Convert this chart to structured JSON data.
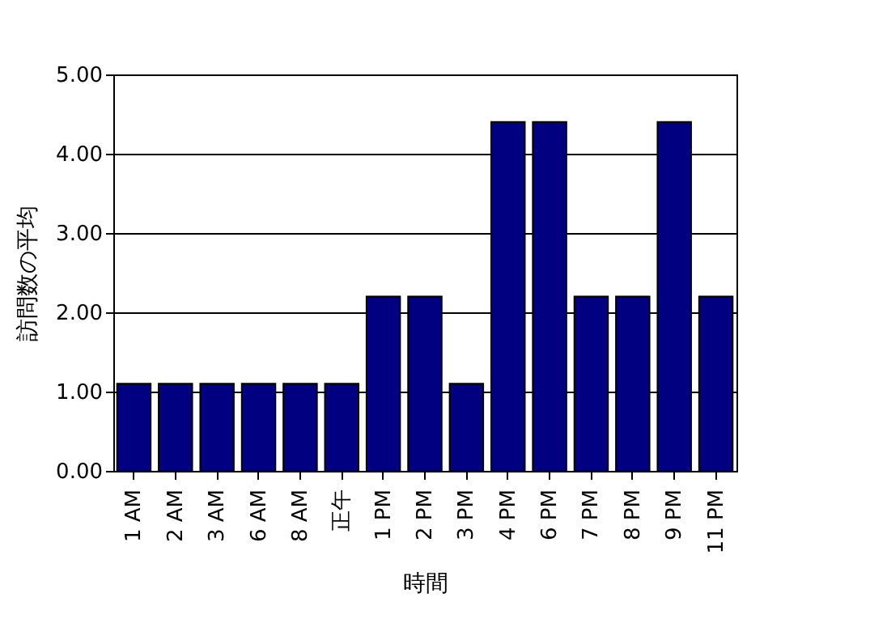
{
  "chart_data": {
    "type": "bar",
    "xlabel": "時間",
    "ylabel": "訪問数の平均",
    "categories": [
      "1 AM",
      "2 AM",
      "3 AM",
      "6 AM",
      "8 AM",
      "正午",
      "1 PM",
      "2 PM",
      "3 PM",
      "4 PM",
      "6 PM",
      "7 PM",
      "8 PM",
      "9 PM",
      "11 PM"
    ],
    "values": [
      1.1,
      1.1,
      1.1,
      1.1,
      1.1,
      1.1,
      2.2,
      2.2,
      1.1,
      4.4,
      4.4,
      2.2,
      2.2,
      4.4,
      2.2
    ],
    "color": "#000080",
    "ylim": [
      0,
      5
    ],
    "yticks": [
      {
        "value": 0,
        "label": "0.00"
      },
      {
        "value": 1,
        "label": "1.00"
      },
      {
        "value": 2,
        "label": "2.00"
      },
      {
        "value": 3,
        "label": "3.00"
      },
      {
        "value": 4,
        "label": "4.00"
      },
      {
        "value": 5,
        "label": "5.00"
      }
    ],
    "grid": "y"
  }
}
